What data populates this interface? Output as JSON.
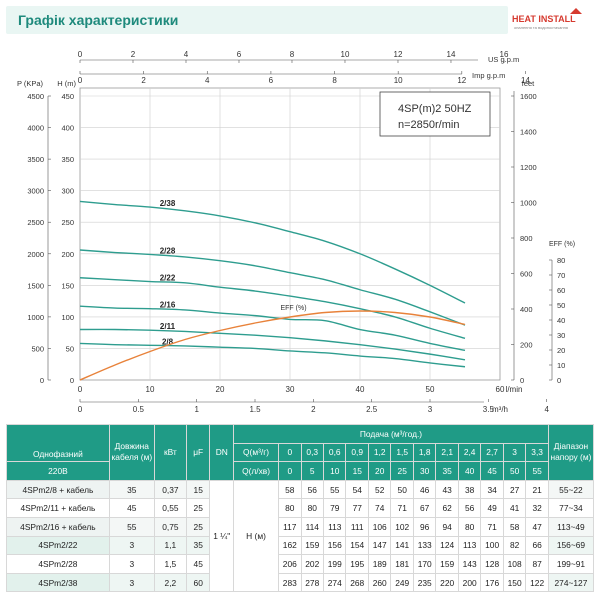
{
  "header": {
    "title": "Графік характеристики"
  },
  "logo": {
    "text": "HEAT INSTALL",
    "sub": "опалення та водопостачання"
  },
  "chart_data": {
    "type": "line",
    "title": "4SP(m)2  50HZ",
    "subtitle": "n=2850r/min",
    "axes": {
      "x_lmin": {
        "label": "l/min",
        "range": [
          0,
          60
        ],
        "ticks": [
          "0",
          "10",
          "20",
          "30",
          "40",
          "50",
          "60"
        ]
      },
      "x_m3h": {
        "label": "m³/h",
        "range": [
          0,
          3.6
        ],
        "ticks": [
          "0",
          "0.5",
          "1",
          "1.5",
          "2",
          "2.5",
          "3",
          "3.5",
          "4"
        ]
      },
      "x_us": {
        "label": "US g.p.m",
        "range": [
          0,
          16
        ],
        "ticks": [
          "0",
          "2",
          "4",
          "6",
          "8",
          "10",
          "12",
          "14",
          "16"
        ]
      },
      "x_imp": {
        "label": "Imp g.p.m",
        "range": [
          0,
          14
        ],
        "ticks": [
          "0",
          "2",
          "4",
          "6",
          "8",
          "10",
          "12",
          "14"
        ]
      },
      "y_h": {
        "label": "H (m)",
        "range": [
          0,
          450
        ],
        "ticks": [
          "0",
          "50",
          "100",
          "150",
          "200",
          "250",
          "300",
          "350",
          "400",
          "450"
        ]
      },
      "y_p": {
        "label": "P (KPa)",
        "range": [
          0,
          4500
        ],
        "ticks": [
          "0",
          "500",
          "1000",
          "1500",
          "2000",
          "2500",
          "3000",
          "3500",
          "4000",
          "4500"
        ]
      },
      "y_feet": {
        "label": "feet",
        "range": [
          0,
          1600
        ],
        "ticks": [
          "0",
          "200",
          "400",
          "600",
          "800",
          "1000",
          "1200",
          "1400",
          "1600"
        ]
      },
      "y_eff": {
        "label": "EFF (%)",
        "range": [
          0,
          80
        ],
        "ticks": [
          "0",
          "10",
          "20",
          "30",
          "40",
          "50",
          "60",
          "70",
          "80"
        ]
      }
    },
    "grid": true,
    "series": [
      {
        "name": "2/38",
        "x": [
          0,
          5,
          10,
          15,
          20,
          25,
          30,
          35,
          40,
          45,
          50,
          55
        ],
        "y": [
          283,
          278,
          274,
          268,
          260,
          249,
          235,
          220,
          200,
          176,
          150,
          122
        ]
      },
      {
        "name": "2/28",
        "x": [
          0,
          5,
          10,
          15,
          20,
          25,
          30,
          35,
          40,
          45,
          50,
          55
        ],
        "y": [
          206,
          202,
          199,
          195,
          189,
          181,
          170,
          159,
          143,
          128,
          108,
          87
        ]
      },
      {
        "name": "2/22",
        "x": [
          0,
          5,
          10,
          15,
          20,
          25,
          30,
          35,
          40,
          45,
          50,
          55
        ],
        "y": [
          162,
          159,
          156,
          154,
          147,
          141,
          133,
          124,
          113,
          100,
          82,
          66
        ]
      },
      {
        "name": "2/16",
        "x": [
          0,
          5,
          10,
          15,
          20,
          25,
          30,
          35,
          40,
          45,
          50,
          55
        ],
        "y": [
          117,
          114,
          113,
          111,
          106,
          102,
          96,
          94,
          80,
          71,
          58,
          47
        ]
      },
      {
        "name": "2/11",
        "x": [
          0,
          5,
          10,
          15,
          20,
          25,
          30,
          35,
          40,
          45,
          50,
          55
        ],
        "y": [
          80,
          80,
          79,
          77,
          74,
          71,
          67,
          62,
          56,
          49,
          41,
          32
        ]
      },
      {
        "name": "2/8",
        "x": [
          0,
          5,
          10,
          15,
          20,
          25,
          30,
          35,
          40,
          45,
          50,
          55
        ],
        "y": [
          58,
          56,
          55,
          54,
          52,
          50,
          46,
          43,
          38,
          34,
          27,
          21
        ]
      },
      {
        "name": "EFF (%)",
        "axis": "eff",
        "x": [
          0,
          5,
          10,
          15,
          20,
          25,
          30,
          35,
          40,
          45,
          50,
          55
        ],
        "y": [
          0,
          10,
          19,
          27,
          33,
          38,
          42,
          45,
          46,
          45,
          42,
          37
        ]
      }
    ]
  },
  "table": {
    "h_single": "Однофазний",
    "h_220": "220В",
    "h_cable": "Довжина кабеля (м)",
    "h_kw": "кВт",
    "h_uf": "μF",
    "h_dn": "DN",
    "h_flow": "Подача (м³/год.)",
    "h_q1": "Q(м³/г)",
    "h_q2": "Q(л/хв)",
    "h_range": "Діапазон напору (м)",
    "q_m3": [
      "0",
      "0,3",
      "0,6",
      "0,9",
      "1,2",
      "1,5",
      "1,8",
      "2,1",
      "2,4",
      "2,7",
      "3",
      "3,3"
    ],
    "q_l": [
      "0",
      "5",
      "10",
      "15",
      "20",
      "25",
      "30",
      "35",
      "40",
      "45",
      "50",
      "55"
    ],
    "dn": "1 ¼\"",
    "h_label": "H (м)",
    "rows": [
      {
        "name": "4SPm2/8 + кабель",
        "cable": "35",
        "kw": "0,37",
        "uf": "15",
        "v": [
          "58",
          "56",
          "55",
          "54",
          "52",
          "50",
          "46",
          "43",
          "38",
          "34",
          "27",
          "21"
        ],
        "range": "55~22"
      },
      {
        "name": "4SPm2/11 + кабель",
        "cable": "45",
        "kw": "0,55",
        "uf": "25",
        "v": [
          "80",
          "80",
          "79",
          "77",
          "74",
          "71",
          "67",
          "62",
          "56",
          "49",
          "41",
          "32"
        ],
        "range": "77~34"
      },
      {
        "name": "4SPm2/16 + кабель",
        "cable": "55",
        "kw": "0,75",
        "uf": "25",
        "v": [
          "117",
          "114",
          "113",
          "111",
          "106",
          "102",
          "96",
          "94",
          "80",
          "71",
          "58",
          "47"
        ],
        "range": "113~49"
      },
      {
        "name": "4SPm2/22",
        "cable": "3",
        "kw": "1,1",
        "uf": "35",
        "v": [
          "162",
          "159",
          "156",
          "154",
          "147",
          "141",
          "133",
          "124",
          "113",
          "100",
          "82",
          "66"
        ],
        "range": "156~69"
      },
      {
        "name": "4SPm2/28",
        "cable": "3",
        "kw": "1,5",
        "uf": "45",
        "v": [
          "206",
          "202",
          "199",
          "195",
          "189",
          "181",
          "170",
          "159",
          "143",
          "128",
          "108",
          "87"
        ],
        "range": "199~91"
      },
      {
        "name": "4SPm2/38",
        "cable": "3",
        "kw": "2,2",
        "uf": "60",
        "v": [
          "283",
          "278",
          "274",
          "268",
          "260",
          "249",
          "235",
          "220",
          "200",
          "176",
          "150",
          "122"
        ],
        "range": "274~127"
      }
    ]
  }
}
